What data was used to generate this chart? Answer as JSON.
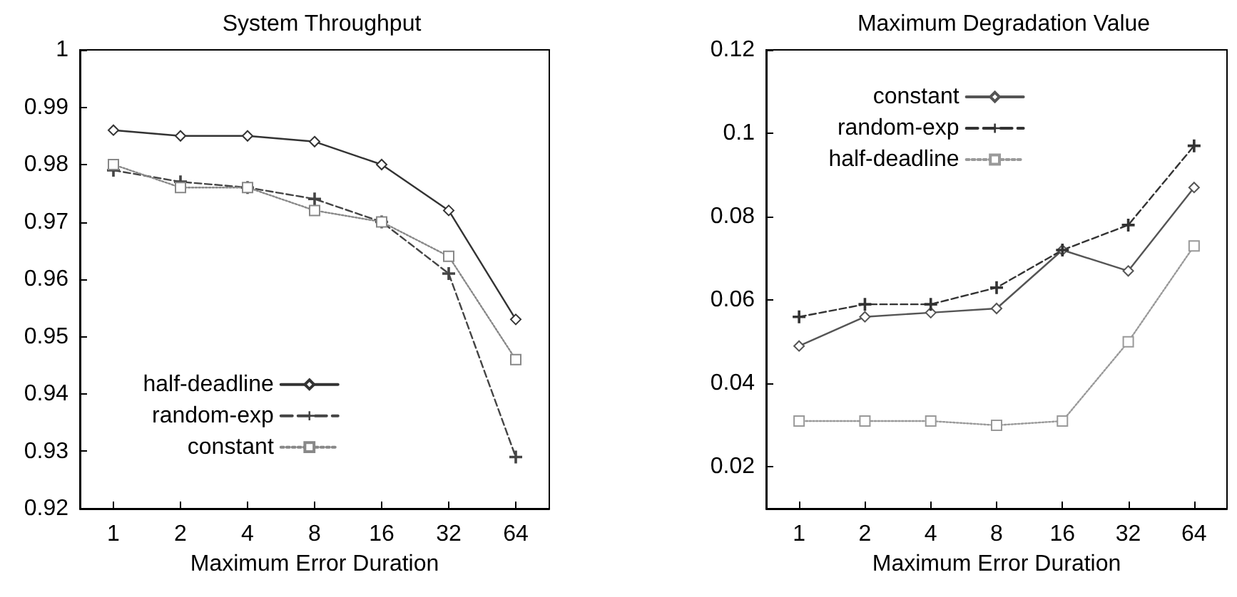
{
  "chart_data": [
    {
      "type": "line",
      "title": "System Throughput",
      "xlabel": "Maximum Error Duration",
      "categories": [
        "1",
        "2",
        "4",
        "8",
        "16",
        "32",
        "64"
      ],
      "ylim": [
        0.92,
        1
      ],
      "yticks": [
        0.92,
        0.93,
        0.94,
        0.95,
        0.96,
        0.97,
        0.98,
        0.99,
        1
      ],
      "grid": false,
      "legend": "bottom left",
      "series": [
        {
          "name": "half-deadline",
          "color": "#333333",
          "marker": "diamond",
          "line_style": "solid",
          "values": [
            0.986,
            0.985,
            0.985,
            0.984,
            0.98,
            0.972,
            0.953
          ]
        },
        {
          "name": "random-exp",
          "color": "#444444",
          "marker": "cross",
          "line_style": "dashed",
          "values": [
            0.979,
            0.977,
            0.976,
            0.974,
            0.97,
            0.961,
            0.929
          ]
        },
        {
          "name": "constant",
          "color": "#888888",
          "marker": "square",
          "line_style": "dotted",
          "values": [
            0.98,
            0.976,
            0.976,
            0.972,
            0.97,
            0.964,
            0.946
          ]
        }
      ]
    },
    {
      "type": "line",
      "title": "Maximum Degradation Value",
      "xlabel": "Maximum Error Duration",
      "categories": [
        "1",
        "2",
        "4",
        "8",
        "16",
        "32",
        "64"
      ],
      "ylim": [
        0.01,
        0.12
      ],
      "yticks": [
        0.02,
        0.04,
        0.06,
        0.08,
        0.1,
        0.12
      ],
      "grid": false,
      "legend": "top",
      "series": [
        {
          "name": "constant",
          "color": "#555555",
          "marker": "diamond",
          "line_style": "solid",
          "values": [
            0.049,
            0.056,
            0.057,
            0.058,
            0.072,
            0.067,
            0.087
          ]
        },
        {
          "name": "random-exp",
          "color": "#333333",
          "marker": "cross",
          "line_style": "dashed",
          "values": [
            0.056,
            0.059,
            0.059,
            0.063,
            0.072,
            0.078,
            0.097
          ]
        },
        {
          "name": "half-deadline",
          "color": "#999999",
          "marker": "square",
          "line_style": "dotted",
          "values": [
            0.031,
            0.031,
            0.031,
            0.03,
            0.031,
            0.05,
            0.073
          ]
        }
      ]
    }
  ]
}
